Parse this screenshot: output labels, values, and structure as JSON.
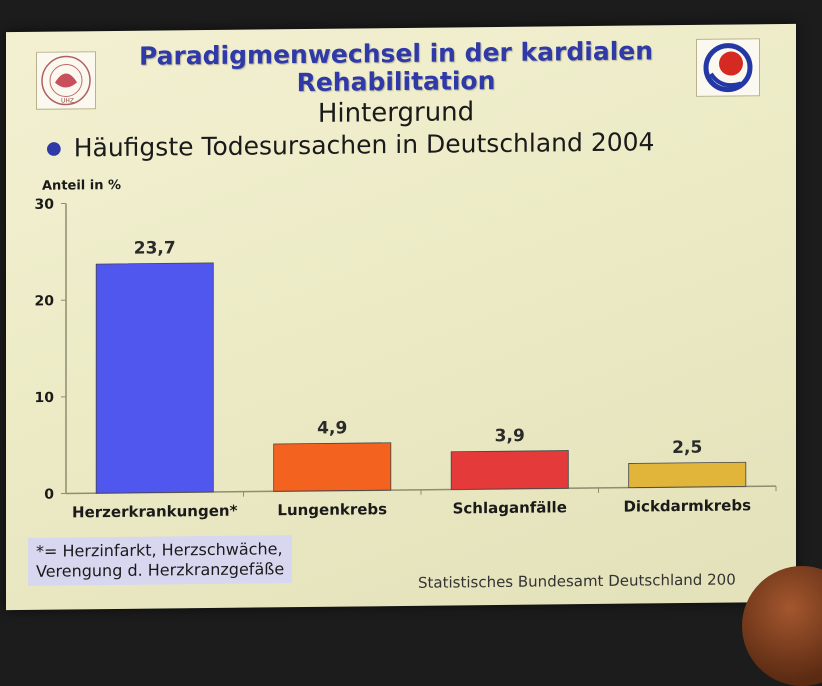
{
  "slide": {
    "title": "Paradigmenwechsel in der kardialen Rehabilitation",
    "subtitle": "Hintergrund",
    "bullet": "Häufigste Todesursachen in Deutschland 2004",
    "footnote_line1": "*= Herzinfarkt, Herzschwäche,",
    "footnote_line2": "Verengung d. Herzkranzgefäße",
    "source": "Statistisches Bundesamt Deutschland 200",
    "logo_left_icon": "university-seal-icon",
    "logo_left_text": "UHZ",
    "logo_right_icon": "heart-logo-icon"
  },
  "chart_data": {
    "type": "bar",
    "ylabel": "Anteil in %",
    "ylim": [
      0,
      30
    ],
    "yticks": [
      0,
      10,
      20,
      30
    ],
    "categories": [
      "Herzerkrankungen*",
      "Lungenkrebs",
      "Schlaganfälle",
      "Dickdarmkrebs"
    ],
    "values": [
      23.7,
      4.9,
      3.9,
      2.5
    ],
    "value_labels": [
      "23,7",
      "4,9",
      "3,9",
      "2,5"
    ],
    "colors": [
      "#4f57ef",
      "#f4621f",
      "#e43a3a",
      "#e0b53a"
    ],
    "grid": false
  }
}
